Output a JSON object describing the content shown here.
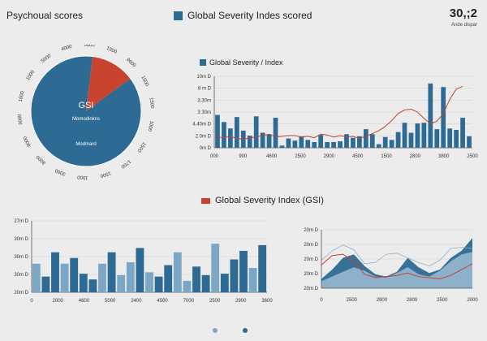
{
  "header": {
    "left_label": "Psychoual scores",
    "title": "Global Severity Indes scored",
    "value": "30,;2",
    "value_sub": "Ande dispar"
  },
  "colors": {
    "blue": "#2d6a94",
    "light_blue": "#7ba6c4",
    "pale_blue": "#b9cfdf",
    "red": "#c8442f",
    "grid": "#d3d3d3"
  },
  "chart_data": [
    {
      "type": "pie",
      "title": "",
      "center_label": "GSI",
      "inner_labels": [
        "Momodinkns",
        "Modmard"
      ],
      "slices": [
        {
          "value": 13,
          "color": "#c8442f"
        },
        {
          "value": 87,
          "color": "#2d6a94"
        }
      ],
      "ring_labels": [
        "9600",
        "1500",
        "9600",
        "1500",
        "1500",
        "1000",
        "1500",
        "1700",
        "1500",
        "1000",
        "3000",
        "8000",
        "8000",
        "3000",
        "1000",
        "1000",
        "5000",
        "4000"
      ]
    },
    {
      "type": "bar",
      "title": "Global Severity / Index",
      "y_ticks": [
        "10m D",
        "8 m D",
        "3.30m",
        "3 30m",
        "4.40m D",
        "2.0m D",
        "0m D"
      ],
      "x_ticks": [
        "000",
        "900",
        "4600",
        "2500",
        "2900",
        "4500",
        "1500",
        "2800",
        "3800",
        "2500"
      ],
      "ylim": [
        0,
        10
      ],
      "values": [
        4.6,
        3.6,
        2.7,
        4.3,
        2.4,
        1.7,
        4.4,
        2.1,
        1.9,
        4.2,
        0.3,
        1.3,
        1.0,
        1.6,
        1.1,
        0.8,
        1.8,
        0.8,
        0.8,
        0.9,
        1.9,
        1.4,
        1.6,
        2.6,
        1.9,
        0.5,
        1.5,
        1.1,
        2.2,
        3.5,
        2.1,
        3.4,
        3.5,
        9.0,
        2.6,
        8.5,
        2.7,
        2.5,
        4.2,
        1.6
      ],
      "line": [
        1.5,
        1.4,
        1.6,
        1.3,
        1.2,
        1.4,
        1.5,
        1.7,
        1.9,
        1.5,
        1.6,
        1.7,
        1.7,
        1.5,
        1.6,
        1.4,
        1.9,
        1.8,
        1.5,
        1.7,
        1.5,
        1.6,
        1.3,
        1.6,
        2.0,
        2.4,
        3.0,
        3.8,
        4.8,
        5.3,
        5.4,
        5.0,
        4.1,
        3.4,
        3.7,
        4.8,
        6.8,
        8.2,
        8.6
      ]
    },
    {
      "type": "bar",
      "title": "",
      "y_ticks": [
        "27m D",
        "30m D",
        "30m D",
        "30m D",
        "20m D"
      ],
      "x_ticks": [
        "0",
        "2000",
        "4600",
        "5000",
        "2400",
        "4500",
        "7000",
        "2500",
        "2900",
        "3600"
      ],
      "ylim": [
        0,
        5
      ],
      "values": [
        2.0,
        1.1,
        2.8,
        2.0,
        2.4,
        1.3,
        0.9,
        2.0,
        2.8,
        1.2,
        2.1,
        3.1,
        1.4,
        1.1,
        1.9,
        2.8,
        0.8,
        1.8,
        1.2,
        3.4,
        1.3,
        2.3,
        2.9,
        1.7,
        3.3
      ],
      "series_colors": [
        "#7ba6c4",
        "#2d6a94",
        "#2d6a94",
        "#7ba6c4",
        "#2d6a94",
        "#2d6a94",
        "#2d6a94",
        "#7ba6c4",
        "#2d6a94",
        "#7ba6c4",
        "#7ba6c4",
        "#2d6a94",
        "#7ba6c4",
        "#2d6a94",
        "#2d6a94",
        "#7ba6c4",
        "#7ba6c4",
        "#2d6a94",
        "#2d6a94",
        "#7ba6c4",
        "#2d6a94",
        "#2d6a94",
        "#2d6a94",
        "#7ba6c4",
        "#2d6a94"
      ]
    },
    {
      "type": "area",
      "title": "Global Severity Index (GSI)",
      "y_ticks": [
        "20m D",
        "20m D",
        "20m D",
        "20m D",
        "20m D"
      ],
      "x_ticks": [
        "0",
        "2500",
        "2900",
        "2800",
        "2500",
        "2000"
      ],
      "ylim": [
        0,
        5
      ],
      "series": [
        {
          "values": [
            0.8,
            1.6,
            2.6,
            2.9,
            1.9,
            1.2,
            1.0,
            1.4,
            2.6,
            1.8,
            1.3,
            1.6,
            2.6,
            3.2,
            4.3
          ],
          "color": "#2d6a94"
        },
        {
          "values": [
            0.6,
            1.0,
            1.4,
            1.8,
            1.5,
            1.0,
            0.9,
            1.3,
            1.8,
            1.2,
            1.0,
            1.5,
            2.3,
            2.9,
            3.1
          ],
          "color": "#9dbcd3"
        },
        {
          "values": [
            2.0,
            2.8,
            2.9,
            2.3,
            1.2,
            0.9,
            1.0,
            1.1,
            1.3,
            1.0,
            0.9,
            0.8,
            1.1,
            1.6,
            2.1
          ],
          "color": "#c8442f"
        },
        {
          "values": [
            2.4,
            3.2,
            3.7,
            3.3,
            2.1,
            2.2,
            2.9,
            3.0,
            2.6,
            2.2,
            1.9,
            2.4,
            3.4,
            3.5,
            3.4
          ],
          "color": "#8fb0c6"
        }
      ]
    }
  ],
  "footer": {
    "dots": [
      "#7ba6c4",
      "#2d6a94"
    ]
  }
}
